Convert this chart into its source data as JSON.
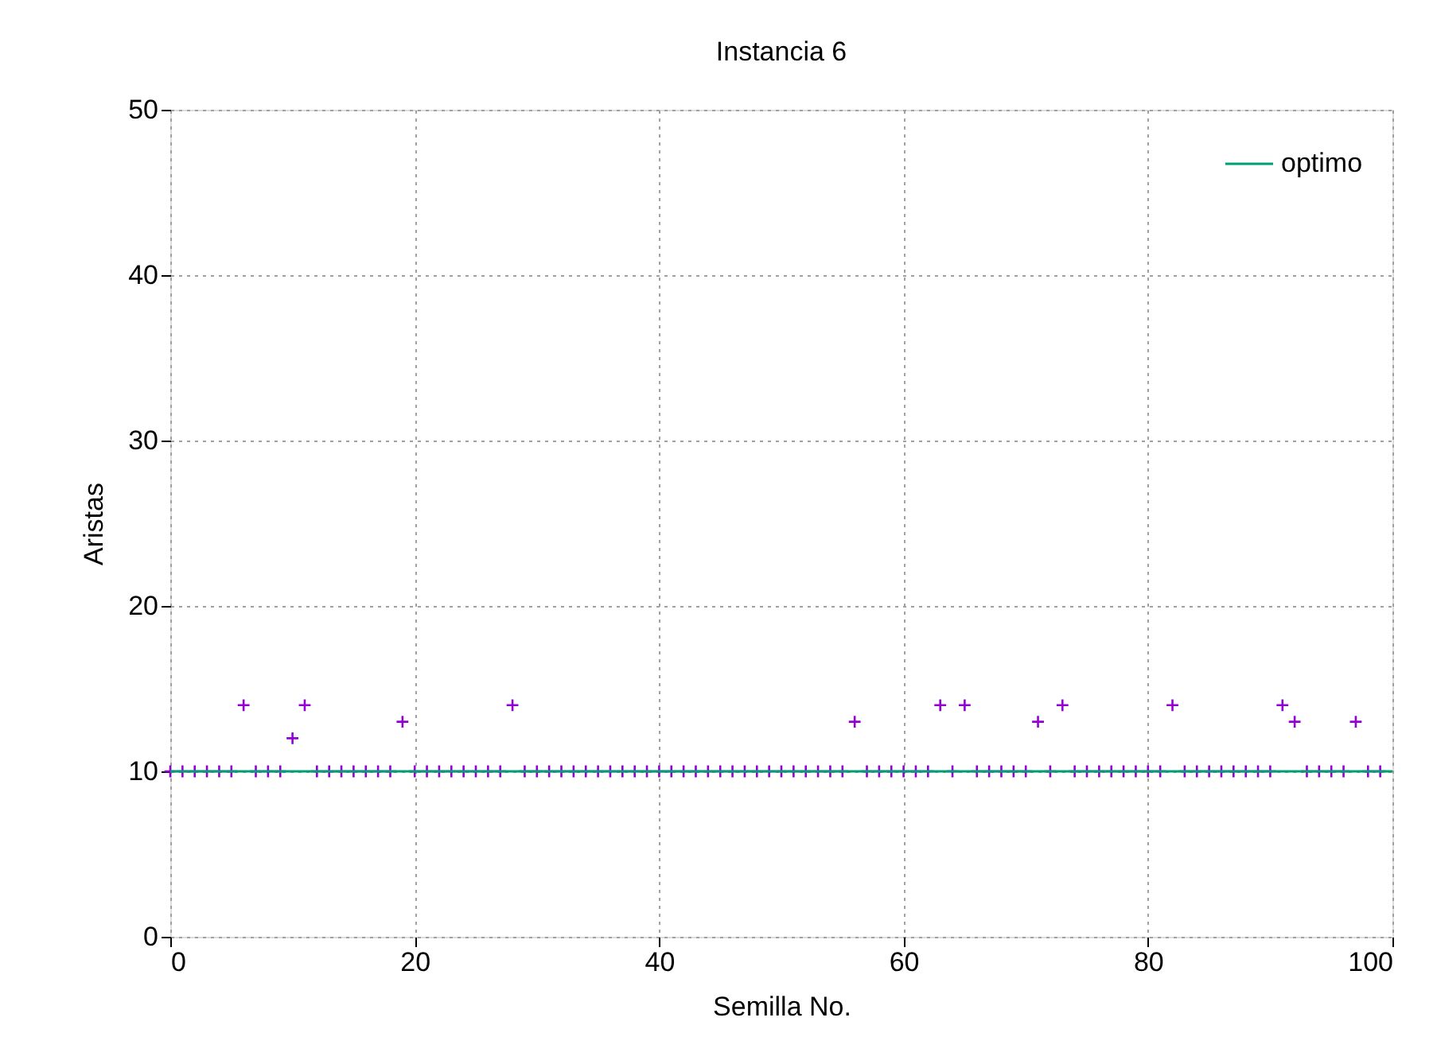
{
  "chart_data": {
    "type": "scatter",
    "title": "Instancia 6",
    "xlabel": "Semilla No.",
    "ylabel": "Aristas",
    "xlim": [
      0,
      100
    ],
    "ylim": [
      0,
      50
    ],
    "xticks": [
      0,
      20,
      40,
      60,
      80,
      100
    ],
    "yticks": [
      0,
      10,
      20,
      30,
      40,
      50
    ],
    "grid": true,
    "legend": "top right",
    "series": [
      {
        "color": "#9400d3",
        "marker": "cross",
        "x": [
          0,
          1,
          2,
          3,
          4,
          5,
          6,
          7,
          8,
          9,
          10,
          11,
          12,
          13,
          14,
          15,
          16,
          17,
          18,
          19,
          20,
          21,
          22,
          23,
          24,
          25,
          26,
          27,
          28,
          29,
          30,
          31,
          32,
          33,
          34,
          35,
          36,
          37,
          38,
          39,
          40,
          41,
          42,
          43,
          44,
          45,
          46,
          47,
          48,
          49,
          50,
          51,
          52,
          53,
          54,
          55,
          56,
          57,
          58,
          59,
          60,
          61,
          62,
          63,
          64,
          65,
          66,
          67,
          68,
          69,
          70,
          71,
          72,
          73,
          74,
          75,
          76,
          77,
          78,
          79,
          80,
          81,
          82,
          83,
          84,
          85,
          86,
          87,
          88,
          89,
          90,
          91,
          92,
          93,
          94,
          95,
          96,
          97,
          98,
          99
        ],
        "values": [
          10,
          10,
          10,
          10,
          10,
          10,
          14,
          10,
          10,
          10,
          12,
          14,
          10,
          10,
          10,
          10,
          10,
          10,
          10,
          13,
          10,
          10,
          10,
          10,
          10,
          10,
          10,
          10,
          14,
          10,
          10,
          10,
          10,
          10,
          10,
          10,
          10,
          10,
          10,
          10,
          10,
          10,
          10,
          10,
          10,
          10,
          10,
          10,
          10,
          10,
          10,
          10,
          10,
          10,
          10,
          10,
          13,
          10,
          10,
          10,
          10,
          10,
          10,
          14,
          10,
          14,
          10,
          10,
          10,
          10,
          10,
          13,
          10,
          14,
          10,
          10,
          10,
          10,
          10,
          10,
          10,
          10,
          14,
          10,
          10,
          10,
          10,
          10,
          10,
          10,
          10,
          14,
          13,
          10,
          10,
          10,
          10,
          13,
          10,
          10
        ]
      },
      {
        "name": "optimo",
        "type": "line",
        "color": "#009e73",
        "x": [
          0,
          100
        ],
        "values": [
          10,
          10
        ]
      }
    ]
  }
}
